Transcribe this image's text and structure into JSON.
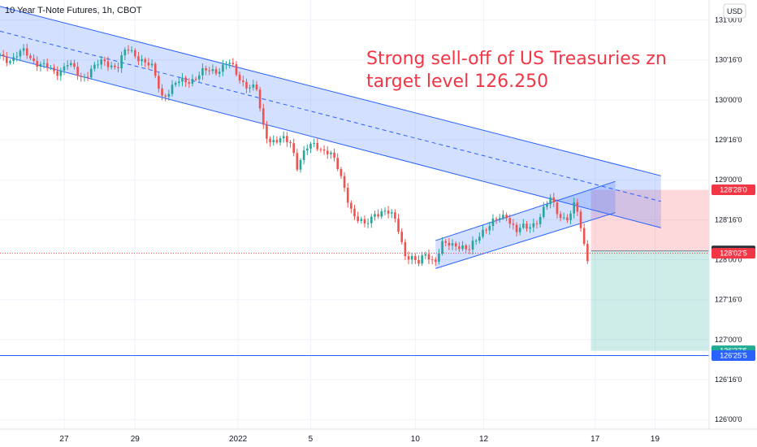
{
  "header": {
    "symbol_title": "10 Year T-Note Futures, 1h, CBOT",
    "currency": "USD"
  },
  "annotation": {
    "line1": "Strong sell-off of US Treasuries zn",
    "line2": "target level 126.250"
  },
  "colors": {
    "up": "#26a69a",
    "down": "#ef5350",
    "channel_fill": "#2962ff",
    "channel_line": "#2962ff",
    "stop_zone": "#f7525f",
    "target_zone": "#22ab94",
    "text": "#131722",
    "grid": "#f0f3fa"
  },
  "chart_data": {
    "type": "candlestick",
    "title": "10 Year T-Note Futures, 1h, CBOT",
    "y_axis": {
      "side": "right",
      "ticks": [
        "131'00'0",
        "130'16'0",
        "130'00'0",
        "129'16'0",
        "129'00'0",
        "128'16'0",
        "128'00'0",
        "127'16'0",
        "127'00'0",
        "126'16'0",
        "126'00'0"
      ],
      "tick_values": [
        131.0,
        130.5,
        130.0,
        129.5,
        129.0,
        128.5,
        128.0,
        127.5,
        127.0,
        126.5,
        126.0
      ],
      "range": [
        125.88,
        131.25
      ]
    },
    "x_axis": {
      "ticks": [
        "27",
        "29",
        "2022",
        "5",
        "10",
        "12",
        "17",
        "19"
      ],
      "index_range": [
        0,
        840
      ],
      "tick_index": [
        76,
        160,
        282,
        368,
        492,
        573,
        705,
        776
      ]
    },
    "grid": true,
    "price_labels": [
      {
        "text": "128'28'0",
        "value": 128.875,
        "color": "#f23645"
      },
      {
        "text": "128'03'5",
        "value": 128.11,
        "color": "#2a2e39"
      },
      {
        "text": "128'02'5",
        "value": 128.08,
        "color": "#f23645"
      },
      {
        "text": "126'27'5",
        "value": 126.86,
        "color": "#22ab94"
      },
      {
        "text": "126'25'5",
        "value": 126.8,
        "color": "#2962ff"
      }
    ],
    "current_price": 128.08,
    "horizontal_line": 126.8,
    "trade_setup": {
      "entry": 128.11,
      "stop": 128.875,
      "target": 126.86,
      "start_index": 700,
      "end_index": 842
    },
    "channels": [
      {
        "name": "descending channel",
        "upper": [
          [
            0,
            131.17
          ],
          [
            783,
            129.05
          ]
        ],
        "lower": [
          [
            0,
            130.56
          ],
          [
            783,
            128.4
          ]
        ],
        "mid": [
          [
            0,
            130.86
          ],
          [
            783,
            128.73
          ]
        ]
      },
      {
        "name": "ascending channel",
        "upper": [
          [
            516,
            128.24
          ],
          [
            729,
            128.98
          ]
        ],
        "lower": [
          [
            516,
            127.89
          ],
          [
            729,
            128.59
          ]
        ]
      }
    ],
    "series": [
      {
        "values": [
          [
            0,
            130.57
          ],
          [
            15,
            130.5
          ],
          [
            30,
            130.61
          ],
          [
            50,
            130.41
          ],
          [
            65,
            130.35
          ],
          [
            80,
            130.45
          ],
          [
            95,
            130.28
          ],
          [
            110,
            130.4
          ],
          [
            125,
            130.47
          ],
          [
            140,
            130.43
          ],
          [
            150,
            130.62
          ],
          [
            165,
            130.55
          ],
          [
            180,
            130.38
          ],
          [
            192,
            130.06
          ],
          [
            207,
            130.18
          ],
          [
            222,
            130.25
          ],
          [
            238,
            130.32
          ],
          [
            255,
            130.38
          ],
          [
            270,
            130.46
          ],
          [
            283,
            130.28
          ],
          [
            295,
            130.18
          ],
          [
            305,
            130.1
          ],
          [
            310,
            129.7
          ],
          [
            318,
            129.52
          ],
          [
            332,
            129.49
          ],
          [
            345,
            129.45
          ],
          [
            352,
            129.2
          ],
          [
            362,
            129.38
          ],
          [
            375,
            129.42
          ],
          [
            390,
            129.37
          ],
          [
            400,
            129.12
          ],
          [
            410,
            128.84
          ],
          [
            420,
            128.55
          ],
          [
            432,
            128.4
          ],
          [
            445,
            128.62
          ],
          [
            458,
            128.58
          ],
          [
            470,
            128.48
          ],
          [
            480,
            128.08
          ],
          [
            495,
            127.92
          ],
          [
            505,
            128.12
          ],
          [
            515,
            127.96
          ],
          [
            525,
            128.18
          ],
          [
            540,
            128.22
          ],
          [
            555,
            128.08
          ],
          [
            570,
            128.38
          ],
          [
            585,
            128.45
          ],
          [
            600,
            128.58
          ],
          [
            612,
            128.35
          ],
          [
            625,
            128.4
          ],
          [
            640,
            128.55
          ],
          [
            652,
            128.74
          ],
          [
            665,
            128.55
          ],
          [
            675,
            128.52
          ],
          [
            682,
            128.7
          ],
          [
            690,
            128.28
          ],
          [
            697,
            128.02
          ]
        ]
      }
    ]
  }
}
